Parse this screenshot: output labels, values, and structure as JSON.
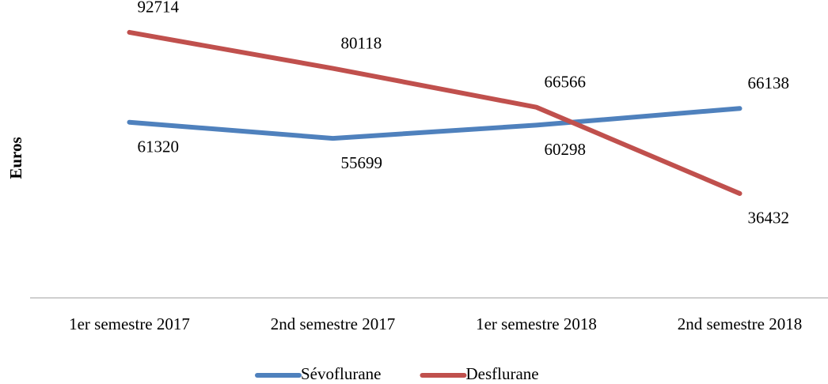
{
  "chart_data": {
    "type": "line",
    "y_label": "Euros",
    "categories": [
      "1er semestre 2017",
      "2nd semestre 2017",
      "1er semestre 2018",
      "2nd semestre 2018"
    ],
    "series": [
      {
        "name": "Sévoflurane",
        "color": "#4f81bd",
        "values": [
          61320,
          55699,
          60298,
          66138
        ]
      },
      {
        "name": "Desflurane",
        "color": "#c0504d",
        "values": [
          92714,
          80118,
          66566,
          36432
        ]
      }
    ],
    "ylim": [
      0,
      100000
    ],
    "grid": false,
    "legend": "bottom"
  }
}
